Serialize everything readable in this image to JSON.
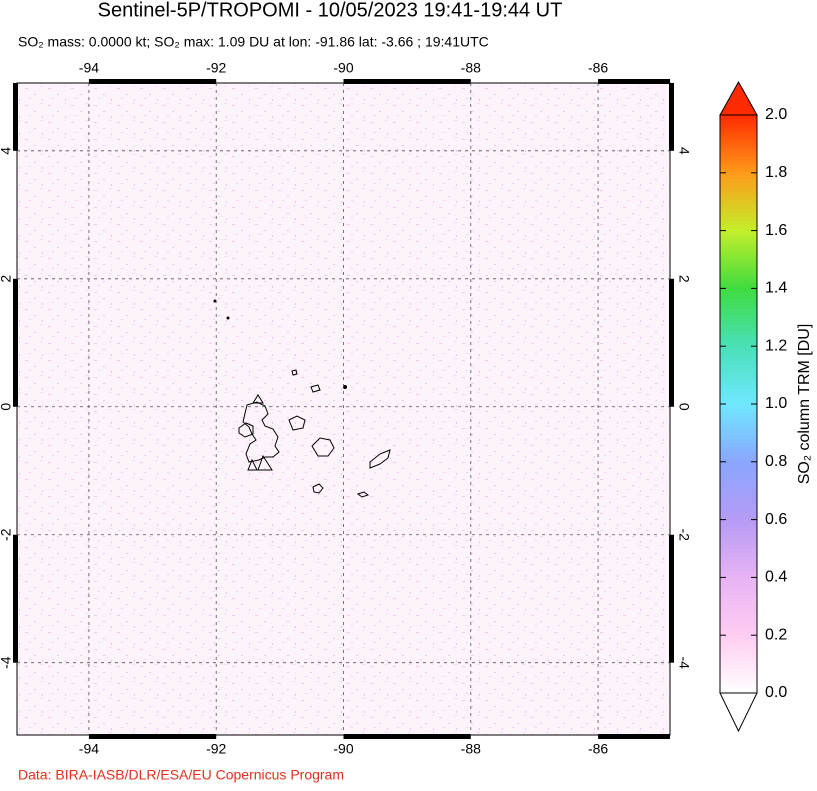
{
  "chart_data": {
    "type": "map",
    "title": "Sentinel-5P/TROPOMI - 10/05/2023 19:41-19:44 UT",
    "subtitle": "SO₂ mass: 0.0000 kt; SO₂ max: 1.09 DU at lon: -91.86 lat: -3.66 ; 19:41UTC",
    "xlim": [
      -95.13,
      -84.87
    ],
    "ylim": [
      -5.13,
      5.06
    ],
    "xticks": [
      -94,
      -92,
      -90,
      -88,
      -86
    ],
    "yticks": [
      -4,
      -2,
      0,
      2,
      4
    ],
    "grid": true,
    "colorbar": {
      "label": "SO₂ column TRM [DU]",
      "lim": [
        0,
        2
      ],
      "ticks": [
        {
          "value": 0,
          "label": "0.0"
        },
        {
          "value": 0.2,
          "label": "0.2"
        },
        {
          "value": 0.4,
          "label": "0.4"
        },
        {
          "value": 0.6,
          "label": "0.6"
        },
        {
          "value": 0.8,
          "label": "0.8"
        },
        {
          "value": 1,
          "label": "1.0"
        },
        {
          "value": 1.2,
          "label": "1.2"
        },
        {
          "value": 1.4,
          "label": "1.4"
        },
        {
          "value": 1.6,
          "label": "1.6"
        },
        {
          "value": 1.8,
          "label": "1.8"
        },
        {
          "value": 2,
          "label": "2.0"
        }
      ],
      "colors": [
        "#ffffff",
        "#ffccf2",
        "#e7b3f5",
        "#b59bf5",
        "#8aa6ff",
        "#6fe8ff",
        "#49e0b8",
        "#3fdc3f",
        "#c4ee2a",
        "#ff9a1a",
        "#ff2a00"
      ]
    },
    "source": "Data: BIRA-IASB/DLR/ESA/EU Copernicus Program"
  }
}
